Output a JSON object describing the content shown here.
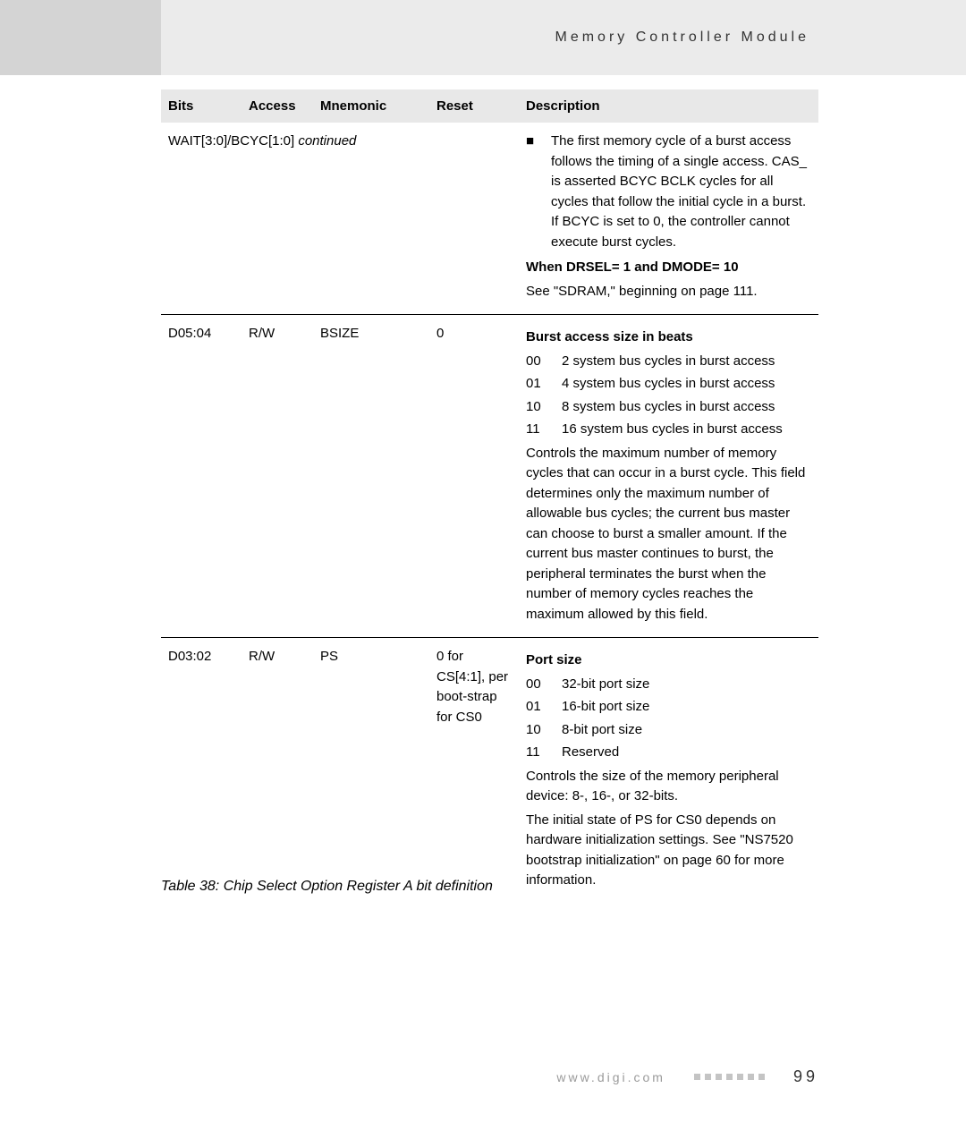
{
  "header": {
    "title": "Memory Controller Module"
  },
  "table": {
    "headers": {
      "bits": "Bits",
      "access": "Access",
      "mnemonic": "Mnemonic",
      "reset": "Reset",
      "description": "Description"
    },
    "rows": [
      {
        "bits_span": "WAIT[3:0]/BCYC[1:0]",
        "continued": " continued",
        "description": {
          "bullet": "The first memory cycle of a burst access follows the timing of a single access. CAS_ is asserted BCYC BCLK cycles for all cycles that follow the initial cycle in a burst. If BCYC is set to 0, the controller cannot execute burst cycles.",
          "bold_line": "When DRSEL= 1 and DMODE= 10",
          "after_bold": "See \"SDRAM,\" beginning on page 111."
        }
      },
      {
        "bits": "D05:04",
        "access": "R/W",
        "mnemonic": "BSIZE",
        "reset": "0",
        "description": {
          "title": "Burst access size in beats",
          "codes": [
            {
              "code": "00",
              "text": "2 system bus cycles in burst access"
            },
            {
              "code": "01",
              "text": "4 system bus cycles in burst access"
            },
            {
              "code": "10",
              "text": "8 system bus cycles in burst access"
            },
            {
              "code": "11",
              "text": "16 system bus cycles in burst access"
            }
          ],
          "para": "Controls the maximum number of memory cycles that can occur in a burst cycle. This field determines only the maximum number of allowable bus cycles; the current bus master can choose to burst a smaller amount. If the current bus master continues to burst, the peripheral terminates the burst when the number of memory cycles reaches the maximum allowed by this field."
        }
      },
      {
        "bits": "D03:02",
        "access": "R/W",
        "mnemonic": "PS",
        "reset": "0 for CS[4:1], per boot-strap for CS0",
        "description": {
          "title": "Port size",
          "codes": [
            {
              "code": "00",
              "text": "32-bit port size"
            },
            {
              "code": "01",
              "text": "16-bit port size"
            },
            {
              "code": "10",
              "text": "8-bit port size"
            },
            {
              "code": "11",
              "text": "Reserved"
            }
          ],
          "para1": "Controls the size of the memory peripheral device: 8-, 16-, or 32-bits.",
          "para2": "The initial state of PS for CS0 depends on hardware initialization settings. See \"NS7520 bootstrap initialization\" on page 60 for more information."
        }
      }
    ]
  },
  "caption": "Table 38: Chip Select Option Register A bit definition",
  "footer": {
    "url": "www.digi.com",
    "page": "99"
  },
  "colors": {
    "header_bg": "#ebebeb",
    "sidebar_bg": "#d4d4d4",
    "thead_bg": "#e8e8e8",
    "text": "#000000",
    "footer_text": "#9a9a9a",
    "footer_dot": "#c4c4c4"
  }
}
